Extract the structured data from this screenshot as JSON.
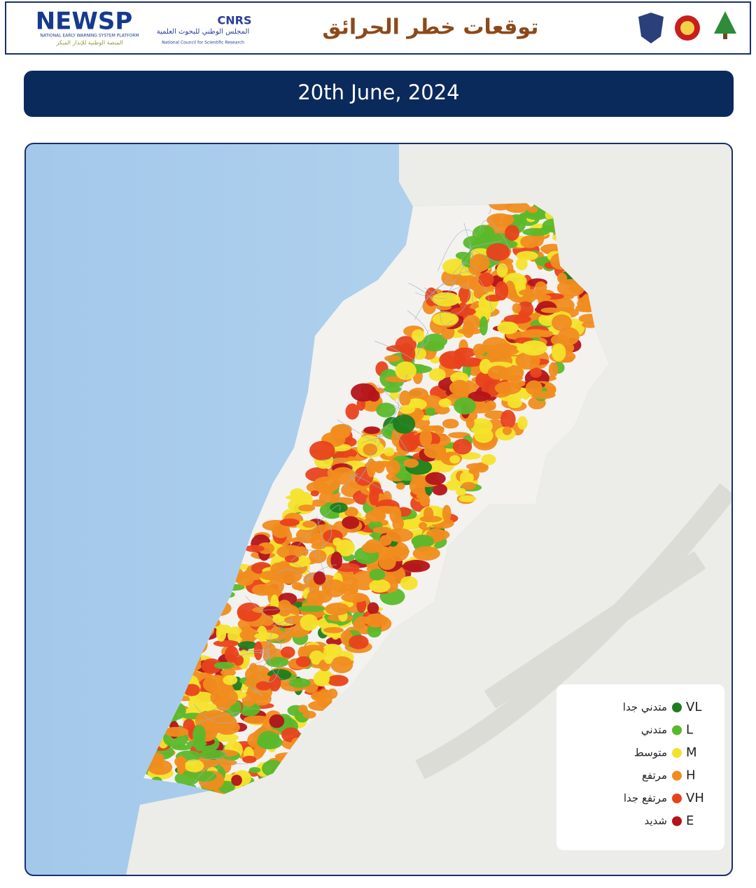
{
  "header": {
    "brand": "NEWSP",
    "brand_subtitle": "NATIONAL EARLY WARNING SYSTEM PLATFORM",
    "brand_subtitle_ar": "المنصة الوطنية للإنذار المبكر",
    "cnrs": "CNRS",
    "cnrs_ar": "المجلس الوطني للبحوث العلمية",
    "cnrs_en": "National Council for Scientific Research",
    "title": "توقعات خطر الحرائق"
  },
  "date": "20th June, 2024",
  "legend": {
    "items": [
      {
        "code": "VL",
        "label": "متدني جدا",
        "color": "#1d7d1d"
      },
      {
        "code": "L",
        "label": "متدني",
        "color": "#5bb82b"
      },
      {
        "code": "M",
        "label": "متوسط",
        "color": "#f4e32c"
      },
      {
        "code": "H",
        "label": "مرتفع",
        "color": "#f08c1f"
      },
      {
        "code": "VH",
        "label": "مرتفع جدا",
        "color": "#e8421d"
      },
      {
        "code": "E",
        "label": "شديد",
        "color": "#b3141b"
      }
    ]
  }
}
